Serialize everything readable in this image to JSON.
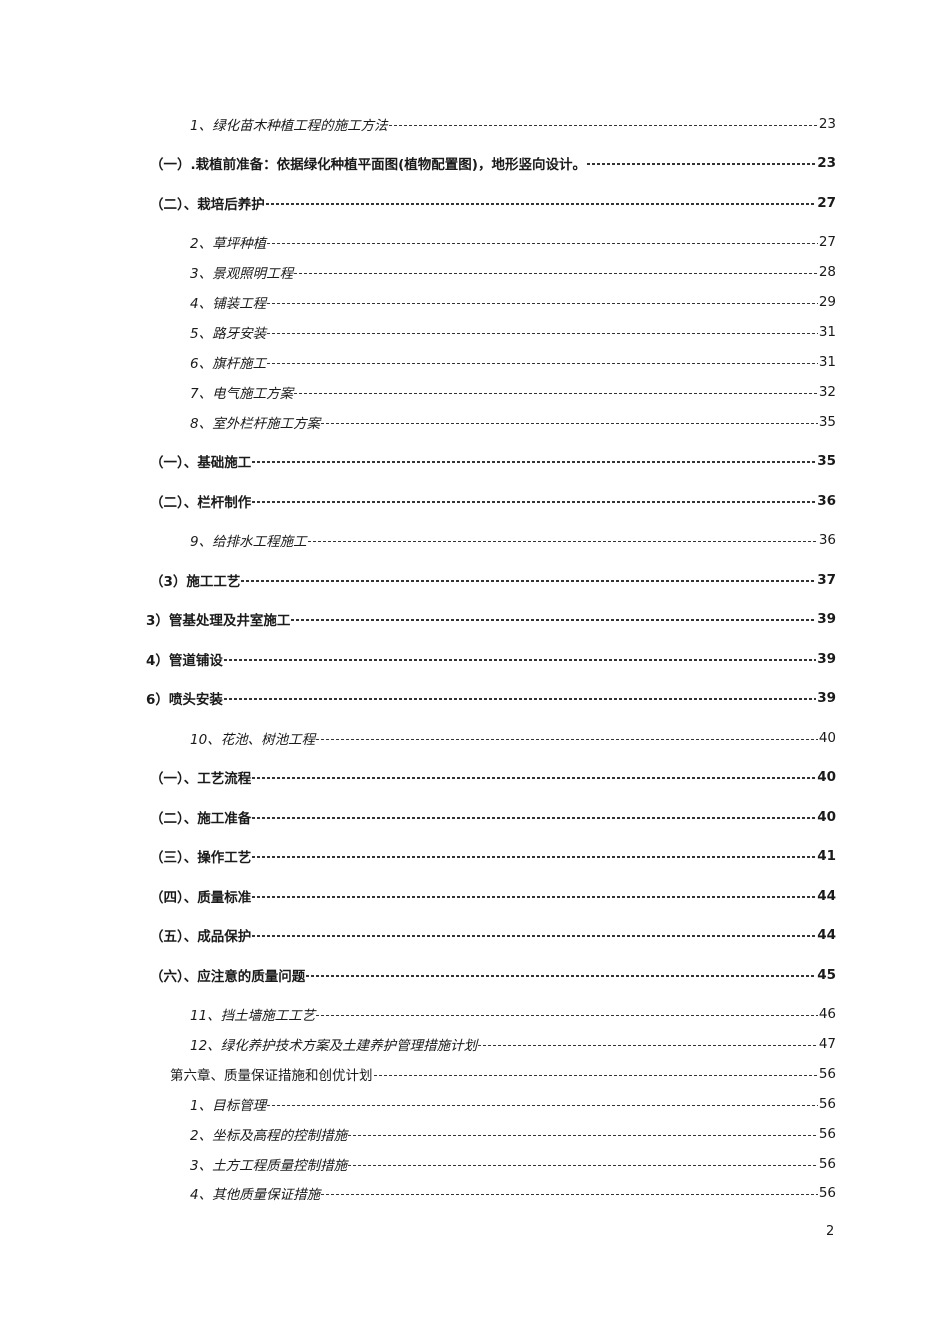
{
  "toc": [
    {
      "label": "1、绿化苗木种植工程的施工方法",
      "page": "23",
      "style": "italic"
    },
    {
      "label": "（一）.栽植前准备：依据绿化种植平面图(植物配置图)，地形竖向设计。",
      "page": "23",
      "style": "bold"
    },
    {
      "label": "（二）、栽培后养护",
      "page": "27",
      "style": "bold"
    },
    {
      "label": "2、草坪种植",
      "page": "27",
      "style": "italic"
    },
    {
      "label": "3、景观照明工程",
      "page": "28",
      "style": "italic"
    },
    {
      "label": "4、铺装工程",
      "page": "29",
      "style": "italic"
    },
    {
      "label": "5、路牙安装",
      "page": "31",
      "style": "italic"
    },
    {
      "label": "6、旗杆施工",
      "page": "31",
      "style": "italic"
    },
    {
      "label": "7、电气施工方案",
      "page": "32",
      "style": "italic"
    },
    {
      "label": "8、室外栏杆施工方案",
      "page": "35",
      "style": "italic"
    },
    {
      "label": "（一）、基础施工",
      "page": "35",
      "style": "bold"
    },
    {
      "label": "（二）、栏杆制作",
      "page": "36",
      "style": "bold"
    },
    {
      "label": "9、给排水工程施工",
      "page": "36",
      "style": "italic"
    },
    {
      "label": "（3）施工工艺",
      "page": "37",
      "style": "bold"
    },
    {
      "label": "3）管基处理及井室施工",
      "page": "39",
      "style": "bold2"
    },
    {
      "label": "4）管道铺设",
      "page": "39",
      "style": "bold2"
    },
    {
      "label": "6）喷头安装",
      "page": "39",
      "style": "bold2"
    },
    {
      "label": "10、花池、树池工程",
      "page": "40",
      "style": "italic"
    },
    {
      "label": "（一）、工艺流程",
      "page": "40",
      "style": "bold"
    },
    {
      "label": "（二）、施工准备",
      "page": "40",
      "style": "bold"
    },
    {
      "label": "（三）、操作工艺",
      "page": "41",
      "style": "bold"
    },
    {
      "label": "（四）、质量标准",
      "page": "44",
      "style": "bold"
    },
    {
      "label": "（五）、成品保护",
      "page": "44",
      "style": "bold"
    },
    {
      "label": "（六）、应注意的质量问题",
      "page": "45",
      "style": "bold"
    },
    {
      "label": "11、挡土墙施工工艺",
      "page": "46",
      "style": "italic"
    },
    {
      "label": "12、绿化养护技术方案及土建养护管理措施计划",
      "page": "47",
      "style": "italic"
    },
    {
      "label": "第六章、质量保证措施和创优计划",
      "page": "56",
      "style": "chapter"
    },
    {
      "label": "1、目标管理",
      "page": "56",
      "style": "italic"
    },
    {
      "label": "2、坐标及高程的控制措施",
      "page": "56",
      "style": "italic"
    },
    {
      "label": "3、土方工程质量控制措施",
      "page": "56",
      "style": "italic"
    },
    {
      "label": "4、其他质量保证措施",
      "page": "56",
      "style": "italic"
    }
  ],
  "page_number": "2"
}
